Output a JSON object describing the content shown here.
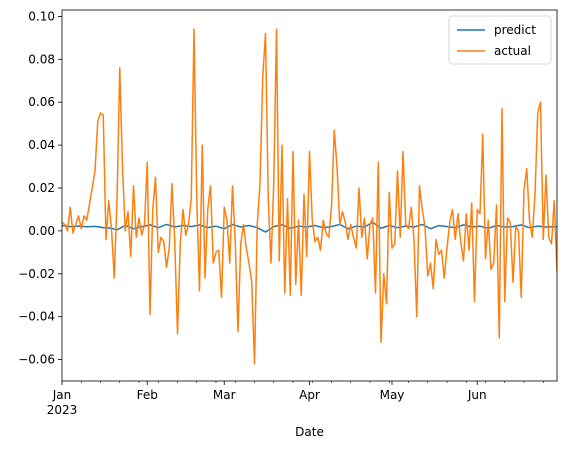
{
  "chart_data": {
    "type": "line",
    "xlabel": "Date",
    "ylabel": "",
    "x_start": "2023-01-01",
    "x_end": "2023-06-30",
    "xlim": [
      "2023-01-01",
      "2023-06-30"
    ],
    "ylim": [
      -0.07,
      0.103
    ],
    "x_ticks": [
      {
        "date": "2023-01-01",
        "label": "Jan",
        "sublabel": "2023"
      },
      {
        "date": "2023-02-01",
        "label": "Feb"
      },
      {
        "date": "2023-03-01",
        "label": "Mar"
      },
      {
        "date": "2023-04-01",
        "label": "Apr"
      },
      {
        "date": "2023-05-01",
        "label": "May"
      },
      {
        "date": "2023-06-01",
        "label": "Jun"
      }
    ],
    "y_ticks": [
      -0.06,
      -0.04,
      -0.02,
      0.0,
      0.02,
      0.04,
      0.06,
      0.08,
      0.1
    ],
    "y_tick_labels": [
      "−0.06",
      "−0.04",
      "−0.02",
      "0.00",
      "0.02",
      "0.04",
      "0.06",
      "0.08",
      "0.10"
    ],
    "legend": {
      "placement": "top-right"
    },
    "grid": false,
    "series": [
      {
        "name": "predict",
        "color": "#1f77b4",
        "points": [
          [
            "2023-01-01",
            0.0025
          ],
          [
            "2023-01-04",
            0.002
          ],
          [
            "2023-01-07",
            0.0022
          ],
          [
            "2023-01-10",
            0.0019
          ],
          [
            "2023-01-13",
            0.0021
          ],
          [
            "2023-01-16",
            0.0015
          ],
          [
            "2023-01-19",
            0.0012
          ],
          [
            "2023-01-21",
            0.0005
          ],
          [
            "2023-01-24",
            0.0025
          ],
          [
            "2023-01-27",
            0.001
          ],
          [
            "2023-01-30",
            0.002
          ],
          [
            "2023-02-02",
            0.0028
          ],
          [
            "2023-02-05",
            0.0015
          ],
          [
            "2023-02-08",
            0.003
          ],
          [
            "2023-02-11",
            0.0018
          ],
          [
            "2023-02-14",
            0.0025
          ],
          [
            "2023-02-17",
            0.002
          ],
          [
            "2023-02-20",
            0.0028
          ],
          [
            "2023-02-23",
            0.0015
          ],
          [
            "2023-02-26",
            0.0022
          ],
          [
            "2023-03-01",
            0.001
          ],
          [
            "2023-03-04",
            0.003
          ],
          [
            "2023-03-07",
            0.0018
          ],
          [
            "2023-03-10",
            0.0025
          ],
          [
            "2023-03-13",
            0.0015
          ],
          [
            "2023-03-16",
            -0.0005
          ],
          [
            "2023-03-19",
            0.002
          ],
          [
            "2023-03-22",
            0.0028
          ],
          [
            "2023-03-25",
            0.0012
          ],
          [
            "2023-03-28",
            0.0022
          ],
          [
            "2023-03-31",
            0.0018
          ],
          [
            "2023-04-03",
            0.0025
          ],
          [
            "2023-04-06",
            0.0015
          ],
          [
            "2023-04-09",
            0.002
          ],
          [
            "2023-04-12",
            0.003
          ],
          [
            "2023-04-15",
            0.001
          ],
          [
            "2023-04-18",
            0.0022
          ],
          [
            "2023-04-21",
            0.0018
          ],
          [
            "2023-04-24",
            0.004
          ],
          [
            "2023-04-27",
            0.0012
          ],
          [
            "2023-04-30",
            0.0025
          ],
          [
            "2023-05-03",
            0.0015
          ],
          [
            "2023-05-06",
            0.0022
          ],
          [
            "2023-05-09",
            0.0018
          ],
          [
            "2023-05-12",
            0.003
          ],
          [
            "2023-05-15",
            0.001
          ],
          [
            "2023-05-18",
            0.0025
          ],
          [
            "2023-05-21",
            0.002
          ],
          [
            "2023-05-24",
            0.0015
          ],
          [
            "2023-05-27",
            0.0028
          ],
          [
            "2023-05-30",
            0.0018
          ],
          [
            "2023-06-02",
            0.0022
          ],
          [
            "2023-06-05",
            0.0012
          ],
          [
            "2023-06-08",
            0.0025
          ],
          [
            "2023-06-11",
            0.0018
          ],
          [
            "2023-06-14",
            0.002
          ],
          [
            "2023-06-17",
            0.0028
          ],
          [
            "2023-06-20",
            0.0015
          ],
          [
            "2023-06-23",
            0.0022
          ],
          [
            "2023-06-26",
            0.0018
          ],
          [
            "2023-06-30",
            0.002
          ]
        ]
      },
      {
        "name": "actual",
        "color": "#ff7f0e",
        "points": [
          [
            "2023-01-01",
            0.004
          ],
          [
            "2023-01-02",
            0.003
          ],
          [
            "2023-01-03",
            0.0
          ],
          [
            "2023-01-04",
            0.011
          ],
          [
            "2023-01-05",
            -0.001
          ],
          [
            "2023-01-06",
            0.003
          ],
          [
            "2023-01-07",
            0.007
          ],
          [
            "2023-01-08",
            0.001
          ],
          [
            "2023-01-09",
            0.007
          ],
          [
            "2023-01-10",
            0.005
          ],
          [
            "2023-01-12",
            0.02
          ],
          [
            "2023-01-13",
            0.028
          ],
          [
            "2023-01-14",
            0.051
          ],
          [
            "2023-01-15",
            0.055
          ],
          [
            "2023-01-16",
            0.054
          ],
          [
            "2023-01-17",
            -0.004
          ],
          [
            "2023-01-18",
            0.014
          ],
          [
            "2023-01-19",
            0.001
          ],
          [
            "2023-01-20",
            -0.022
          ],
          [
            "2023-01-21",
            0.014
          ],
          [
            "2023-01-22",
            0.076
          ],
          [
            "2023-01-23",
            0.03
          ],
          [
            "2023-01-24",
            0.0
          ],
          [
            "2023-01-25",
            0.009
          ],
          [
            "2023-01-26",
            -0.012
          ],
          [
            "2023-01-27",
            0.021
          ],
          [
            "2023-01-28",
            -0.003
          ],
          [
            "2023-01-29",
            0.006
          ],
          [
            "2023-01-30",
            -0.002
          ],
          [
            "2023-01-31",
            0.003
          ],
          [
            "2023-02-01",
            0.032
          ],
          [
            "2023-02-02",
            -0.039
          ],
          [
            "2023-02-03",
            0.01
          ],
          [
            "2023-02-04",
            0.025
          ],
          [
            "2023-02-05",
            -0.01
          ],
          [
            "2023-02-06",
            -0.003
          ],
          [
            "2023-02-07",
            -0.005
          ],
          [
            "2023-02-08",
            -0.017
          ],
          [
            "2023-02-09",
            -0.008
          ],
          [
            "2023-02-10",
            0.022
          ],
          [
            "2023-02-11",
            -0.005
          ],
          [
            "2023-02-12",
            -0.048
          ],
          [
            "2023-02-13",
            -0.006
          ],
          [
            "2023-02-14",
            0.01
          ],
          [
            "2023-02-15",
            -0.002
          ],
          [
            "2023-02-16",
            0.003
          ],
          [
            "2023-02-17",
            0.015
          ],
          [
            "2023-02-18",
            0.094
          ],
          [
            "2023-02-19",
            0.015
          ],
          [
            "2023-02-20",
            -0.028
          ],
          [
            "2023-02-21",
            0.04
          ],
          [
            "2023-02-22",
            -0.022
          ],
          [
            "2023-02-23",
            0.01
          ],
          [
            "2023-02-24",
            0.021
          ],
          [
            "2023-02-25",
            -0.015
          ],
          [
            "2023-02-26",
            -0.01
          ],
          [
            "2023-02-27",
            -0.009
          ],
          [
            "2023-02-28",
            -0.031
          ],
          [
            "2023-03-01",
            0.011
          ],
          [
            "2023-03-02",
            0.005
          ],
          [
            "2023-03-03",
            -0.015
          ],
          [
            "2023-03-04",
            0.021
          ],
          [
            "2023-03-05",
            -0.005
          ],
          [
            "2023-03-06",
            -0.047
          ],
          [
            "2023-03-07",
            -0.006
          ],
          [
            "2023-03-08",
            0.003
          ],
          [
            "2023-03-09",
            -0.008
          ],
          [
            "2023-03-10",
            -0.015
          ],
          [
            "2023-03-11",
            -0.024
          ],
          [
            "2023-03-12",
            -0.062
          ],
          [
            "2023-03-13",
            0.003
          ],
          [
            "2023-03-14",
            0.022
          ],
          [
            "2023-03-15",
            0.072
          ],
          [
            "2023-03-16",
            0.092
          ],
          [
            "2023-03-17",
            0.015
          ],
          [
            "2023-03-18",
            -0.015
          ],
          [
            "2023-03-19",
            0.022
          ],
          [
            "2023-03-20",
            0.094
          ],
          [
            "2023-03-21",
            -0.014
          ],
          [
            "2023-03-22",
            0.04
          ],
          [
            "2023-03-23",
            -0.029
          ],
          [
            "2023-03-24",
            0.015
          ],
          [
            "2023-03-25",
            -0.03
          ],
          [
            "2023-03-26",
            0.037
          ],
          [
            "2023-03-27",
            -0.025
          ],
          [
            "2023-03-28",
            0.005
          ],
          [
            "2023-03-29",
            -0.03
          ],
          [
            "2023-03-30",
            0.017
          ],
          [
            "2023-03-31",
            -0.012
          ],
          [
            "2023-04-01",
            0.037
          ],
          [
            "2023-04-02",
            0.005
          ],
          [
            "2023-04-03",
            -0.005
          ],
          [
            "2023-04-04",
            -0.003
          ],
          [
            "2023-04-05",
            -0.009
          ],
          [
            "2023-04-06",
            0.005
          ],
          [
            "2023-04-07",
            -0.001
          ],
          [
            "2023-04-08",
            -0.003
          ],
          [
            "2023-04-09",
            0.011
          ],
          [
            "2023-04-10",
            0.047
          ],
          [
            "2023-04-11",
            0.03
          ],
          [
            "2023-04-12",
            0.003
          ],
          [
            "2023-04-13",
            0.009
          ],
          [
            "2023-04-14",
            0.004
          ],
          [
            "2023-04-15",
            -0.004
          ],
          [
            "2023-04-16",
            0.003
          ],
          [
            "2023-04-17",
            -0.003
          ],
          [
            "2023-04-18",
            -0.008
          ],
          [
            "2023-04-19",
            0.02
          ],
          [
            "2023-04-20",
            -0.003
          ],
          [
            "2023-04-21",
            0.006
          ],
          [
            "2023-04-22",
            -0.013
          ],
          [
            "2023-04-23",
            0.003
          ],
          [
            "2023-04-24",
            0.006
          ],
          [
            "2023-04-25",
            -0.029
          ],
          [
            "2023-04-26",
            0.032
          ],
          [
            "2023-04-27",
            -0.052
          ],
          [
            "2023-04-28",
            -0.02
          ],
          [
            "2023-04-29",
            -0.034
          ],
          [
            "2023-04-30",
            0.018
          ],
          [
            "2023-05-01",
            -0.008
          ],
          [
            "2023-05-02",
            -0.006
          ],
          [
            "2023-05-03",
            0.028
          ],
          [
            "2023-05-04",
            -0.003
          ],
          [
            "2023-05-05",
            0.037
          ],
          [
            "2023-05-06",
            0.003
          ],
          [
            "2023-05-07",
            0.001
          ],
          [
            "2023-05-08",
            0.011
          ],
          [
            "2023-05-09",
            -0.004
          ],
          [
            "2023-05-10",
            -0.04
          ],
          [
            "2023-05-11",
            0.021
          ],
          [
            "2023-05-12",
            0.01
          ],
          [
            "2023-05-13",
            0.002
          ],
          [
            "2023-05-14",
            -0.021
          ],
          [
            "2023-05-15",
            -0.015
          ],
          [
            "2023-05-16",
            -0.027
          ],
          [
            "2023-05-17",
            -0.004
          ],
          [
            "2023-05-18",
            -0.011
          ],
          [
            "2023-05-19",
            -0.009
          ],
          [
            "2023-05-20",
            -0.022
          ],
          [
            "2023-05-21",
            -0.008
          ],
          [
            "2023-05-22",
            0.004
          ],
          [
            "2023-05-23",
            0.01
          ],
          [
            "2023-05-24",
            -0.004
          ],
          [
            "2023-05-25",
            0.008
          ],
          [
            "2023-05-26",
            -0.005
          ],
          [
            "2023-05-27",
            -0.014
          ],
          [
            "2023-05-28",
            0.008
          ],
          [
            "2023-05-29",
            -0.009
          ],
          [
            "2023-05-30",
            0.013
          ],
          [
            "2023-05-31",
            -0.033
          ],
          [
            "2023-06-01",
            0.01
          ],
          [
            "2023-06-02",
            0.008
          ],
          [
            "2023-06-03",
            0.045
          ],
          [
            "2023-06-04",
            -0.013
          ],
          [
            "2023-06-05",
            0.005
          ],
          [
            "2023-06-06",
            -0.018
          ],
          [
            "2023-06-07",
            -0.015
          ],
          [
            "2023-06-08",
            0.012
          ],
          [
            "2023-06-09",
            -0.05
          ],
          [
            "2023-06-10",
            0.057
          ],
          [
            "2023-06-11",
            -0.033
          ],
          [
            "2023-06-12",
            0.006
          ],
          [
            "2023-06-13",
            0.004
          ],
          [
            "2023-06-14",
            -0.024
          ],
          [
            "2023-06-15",
            0.002
          ],
          [
            "2023-06-16",
            0.0
          ],
          [
            "2023-06-17",
            -0.031
          ],
          [
            "2023-06-18",
            0.019
          ],
          [
            "2023-06-19",
            0.029
          ],
          [
            "2023-06-20",
            0.005
          ],
          [
            "2023-06-21",
            -0.003
          ],
          [
            "2023-06-22",
            0.017
          ],
          [
            "2023-06-23",
            0.055
          ],
          [
            "2023-06-24",
            0.06
          ],
          [
            "2023-06-25",
            -0.004
          ],
          [
            "2023-06-26",
            0.026
          ],
          [
            "2023-06-27",
            -0.003
          ],
          [
            "2023-06-28",
            -0.006
          ],
          [
            "2023-06-29",
            0.014
          ],
          [
            "2023-06-30",
            -0.019
          ]
        ]
      }
    ]
  }
}
